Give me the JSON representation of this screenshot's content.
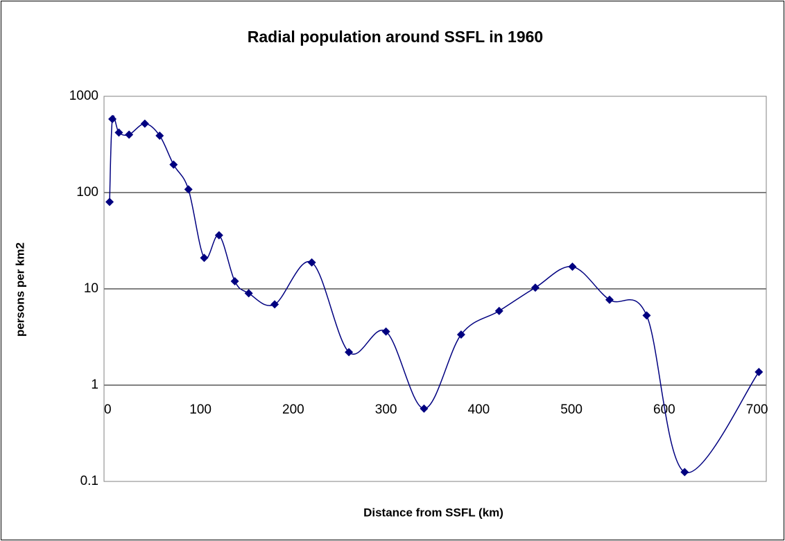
{
  "chart_data": {
    "type": "scatter-smooth",
    "title": "Radial population around SSFL in 1960",
    "x_label": "Distance from SSFL (km)",
    "y_label": "persons per km2",
    "x": [
      2,
      5,
      12,
      23,
      40,
      56,
      71,
      87,
      104,
      120,
      137,
      152,
      180,
      220,
      260,
      300,
      341,
      381,
      422,
      461,
      501,
      541,
      581,
      622,
      702
    ],
    "series": [
      {
        "name": "persons per km2",
        "color": "#000080",
        "values": [
          80,
          580,
          420,
          400,
          520,
          390,
          195,
          108,
          21,
          36,
          12,
          9,
          6.9,
          18.8,
          2.2,
          3.6,
          0.57,
          3.35,
          5.9,
          10.3,
          17,
          7.7,
          5.3,
          0.125,
          1.37
        ]
      }
    ],
    "xlim": [
      -4,
      710
    ],
    "xticks": [
      0,
      100,
      200,
      300,
      400,
      500,
      600,
      700
    ],
    "ylim": [
      0.1,
      1000
    ],
    "yticks": [
      1000,
      100,
      10,
      1,
      0.1
    ],
    "y_log": true,
    "grid": true,
    "x_axis_crosses_at": 1
  }
}
